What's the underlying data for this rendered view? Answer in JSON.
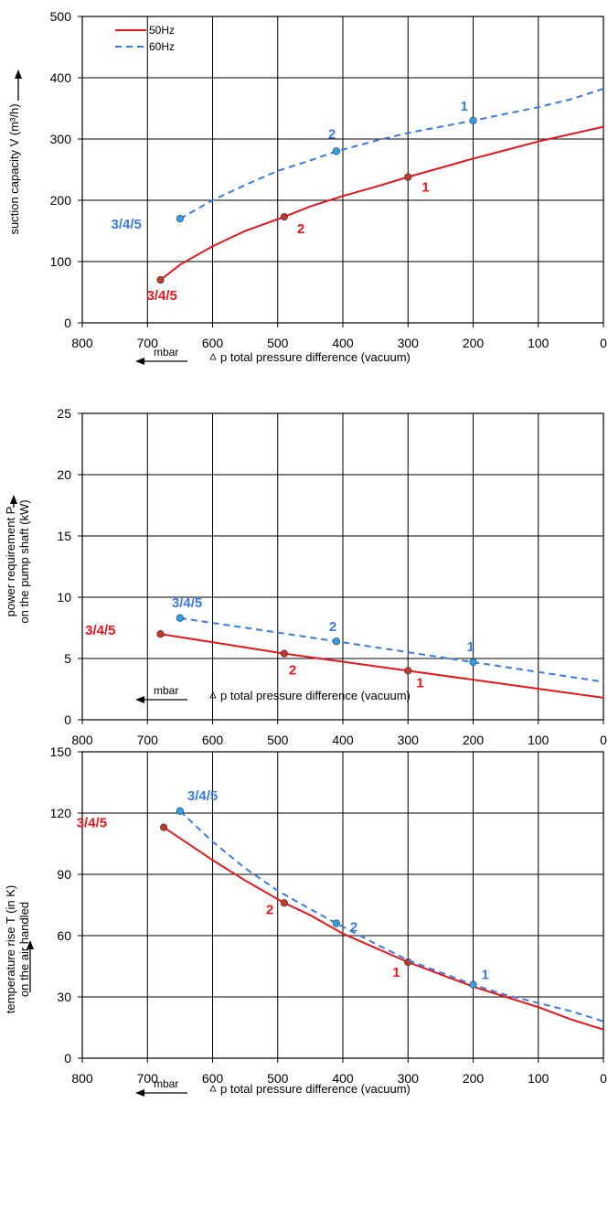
{
  "colors": {
    "50Hz": "#e8161b",
    "60Hz": "#3a7be0",
    "marker_50Hz": "#c0392b",
    "marker_60Hz": "#2fa0e8"
  },
  "legend": [
    {
      "label": "50Hz",
      "style": "solid"
    },
    {
      "label": "60Hz",
      "style": "dashed"
    }
  ],
  "footer": {
    "unit": "mbar",
    "xlabel": "p total pressure difference (vacuum)"
  },
  "chart_data": [
    {
      "type": "line",
      "ylabel": "suction capacity V (m³/h)",
      "xlabel": "p total pressure difference (vacuum)",
      "xlim": [
        800,
        0
      ],
      "ylim": [
        0,
        500
      ],
      "xticks": [
        800,
        700,
        600,
        500,
        400,
        300,
        200,
        100,
        0
      ],
      "yticks": [
        0,
        100,
        200,
        300,
        400,
        500
      ],
      "grid": true,
      "legend_position": "top-left",
      "series": [
        {
          "name": "50Hz",
          "x": [
            680,
            650,
            600,
            550,
            490,
            450,
            400,
            350,
            300,
            250,
            200,
            150,
            100,
            50,
            0
          ],
          "y": [
            70,
            95,
            125,
            150,
            173,
            190,
            207,
            222,
            238,
            253,
            268,
            282,
            296,
            308,
            320
          ],
          "points": [
            {
              "x": 680,
              "y": 70,
              "label": "3/4/5"
            },
            {
              "x": 490,
              "y": 173,
              "label": "2"
            },
            {
              "x": 300,
              "y": 238,
              "label": "1"
            }
          ]
        },
        {
          "name": "60Hz",
          "x": [
            650,
            600,
            550,
            500,
            450,
            410,
            350,
            300,
            250,
            200,
            150,
            100,
            50,
            0
          ],
          "y": [
            170,
            200,
            225,
            248,
            265,
            280,
            297,
            310,
            320,
            330,
            341,
            352,
            365,
            382
          ],
          "points": [
            {
              "x": 650,
              "y": 170,
              "label": "3/4/5"
            },
            {
              "x": 410,
              "y": 280,
              "label": "2"
            },
            {
              "x": 200,
              "y": 330,
              "label": "1"
            }
          ]
        }
      ]
    },
    {
      "type": "line",
      "ylabel": "power requirement P on the pump shaft (kW)",
      "xlabel": "p total pressure difference (vacuum)",
      "xlim": [
        800,
        0
      ],
      "ylim": [
        0,
        25
      ],
      "xticks": [
        800,
        700,
        600,
        500,
        400,
        300,
        200,
        100,
        0
      ],
      "yticks": [
        0,
        5,
        10,
        15,
        20,
        25
      ],
      "grid": true,
      "series": [
        {
          "name": "50Hz",
          "x": [
            680,
            490,
            300,
            0
          ],
          "y": [
            7.0,
            5.4,
            4.0,
            1.8
          ],
          "points": [
            {
              "x": 680,
              "y": 7.0,
              "label": "3/4/5"
            },
            {
              "x": 490,
              "y": 5.4,
              "label": "2"
            },
            {
              "x": 300,
              "y": 4.0,
              "label": "1"
            }
          ]
        },
        {
          "name": "60Hz",
          "x": [
            650,
            410,
            200,
            0
          ],
          "y": [
            8.3,
            6.4,
            4.7,
            3.1
          ],
          "points": [
            {
              "x": 650,
              "y": 8.3,
              "label": "3/4/5"
            },
            {
              "x": 410,
              "y": 6.4,
              "label": "2"
            },
            {
              "x": 200,
              "y": 4.7,
              "label": "1"
            }
          ]
        }
      ]
    },
    {
      "type": "line",
      "ylabel": "temperature rise T (in K) on the air handled",
      "xlabel": "p total pressure difference (vacuum)",
      "xlim": [
        800,
        0
      ],
      "ylim": [
        0,
        150
      ],
      "xticks": [
        800,
        700,
        600,
        500,
        400,
        300,
        200,
        100,
        0
      ],
      "yticks": [
        0,
        30,
        60,
        90,
        120,
        150
      ],
      "grid": true,
      "series": [
        {
          "name": "50Hz",
          "x": [
            675,
            600,
            550,
            490,
            450,
            400,
            350,
            300,
            250,
            200,
            150,
            100,
            50,
            0
          ],
          "y": [
            113,
            97,
            87,
            76,
            70,
            61,
            54,
            47,
            41,
            35,
            30,
            25,
            19,
            14
          ],
          "points": [
            {
              "x": 675,
              "y": 113,
              "label": "3/4/5"
            },
            {
              "x": 490,
              "y": 76,
              "label": "2"
            },
            {
              "x": 300,
              "y": 47,
              "label": "1"
            }
          ]
        },
        {
          "name": "60Hz",
          "x": [
            650,
            600,
            550,
            500,
            450,
            410,
            350,
            300,
            250,
            200,
            150,
            100,
            50,
            0
          ],
          "y": [
            121,
            106,
            93,
            82,
            73,
            66,
            56,
            48,
            42,
            36,
            31,
            27,
            23,
            18
          ],
          "points": [
            {
              "x": 650,
              "y": 121,
              "label": "3/4/5"
            },
            {
              "x": 410,
              "y": 66,
              "label": "2"
            },
            {
              "x": 200,
              "y": 36,
              "label": "1"
            }
          ]
        }
      ]
    }
  ]
}
